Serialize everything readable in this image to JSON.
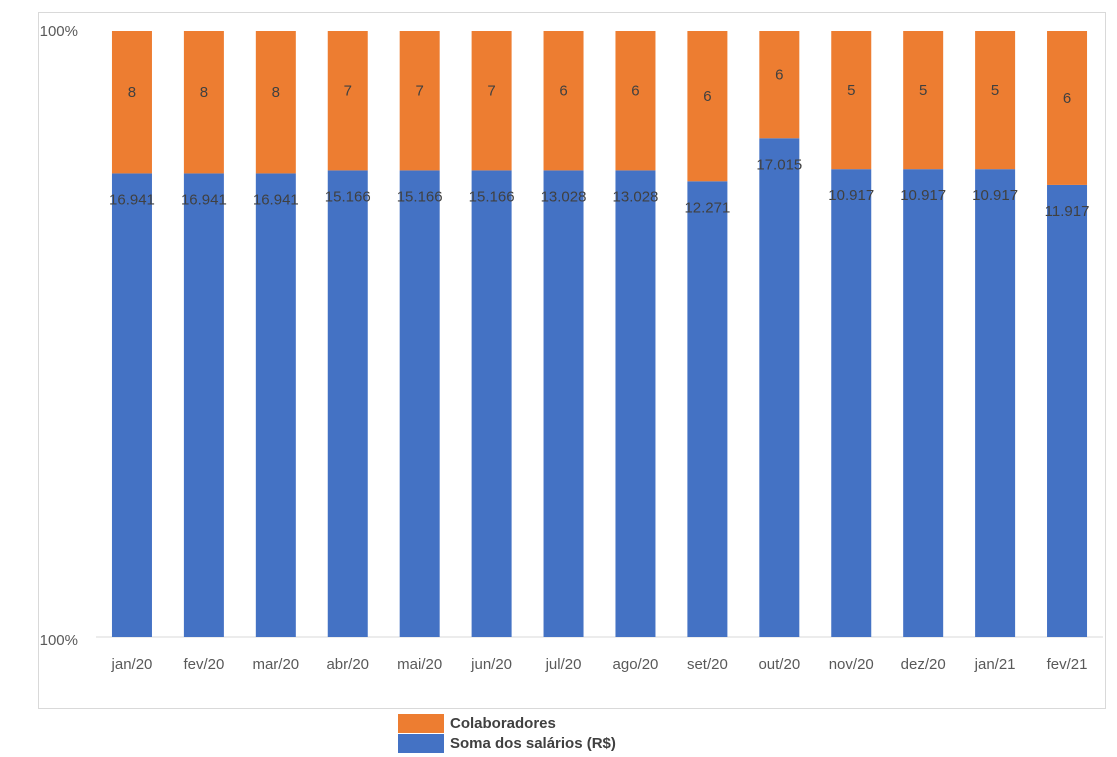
{
  "chart_data": {
    "type": "bar",
    "stacked": "percent",
    "categories": [
      "jan/20",
      "fev/20",
      "mar/20",
      "abr/20",
      "mai/20",
      "jun/20",
      "jul/20",
      "ago/20",
      "set/20",
      "out/20",
      "nov/20",
      "dez/20",
      "jan/21",
      "fev/21"
    ],
    "series": [
      {
        "name": "Soma dos salários (R$)",
        "color": "#4472C4",
        "values": [
          16941,
          16941,
          16941,
          15166,
          15166,
          15166,
          13028,
          13028,
          12271,
          17015,
          10917,
          10917,
          10917,
          11917
        ],
        "labels": [
          "16.941",
          "16.941",
          "16.941",
          "15.166",
          "15.166",
          "15.166",
          "13.028",
          "13.028",
          "12.271",
          "17.015",
          "10.917",
          "10.917",
          "10.917",
          "11.917"
        ],
        "share": [
          0.765,
          0.765,
          0.765,
          0.77,
          0.77,
          0.77,
          0.77,
          0.77,
          0.752,
          0.823,
          0.772,
          0.772,
          0.772,
          0.746
        ]
      },
      {
        "name": "Colaboradores",
        "color": "#ED7D31",
        "values": [
          8,
          8,
          8,
          7,
          7,
          7,
          6,
          6,
          6,
          6,
          5,
          5,
          5,
          6
        ],
        "labels": [
          "8",
          "8",
          "8",
          "7",
          "7",
          "7",
          "6",
          "6",
          "6",
          "6",
          "5",
          "5",
          "5",
          "6"
        ],
        "share": [
          0.235,
          0.235,
          0.235,
          0.23,
          0.23,
          0.23,
          0.23,
          0.23,
          0.248,
          0.177,
          0.228,
          0.228,
          0.228,
          0.254
        ]
      }
    ],
    "y_tick_labels": [
      "100%",
      "100%"
    ],
    "gridlines": false,
    "legend_position": "bottom"
  },
  "legend": [
    {
      "label": "Colaboradores",
      "color": "#ED7D31"
    },
    {
      "label": "Soma dos salários (R$)",
      "color": "#4472C4"
    }
  ]
}
